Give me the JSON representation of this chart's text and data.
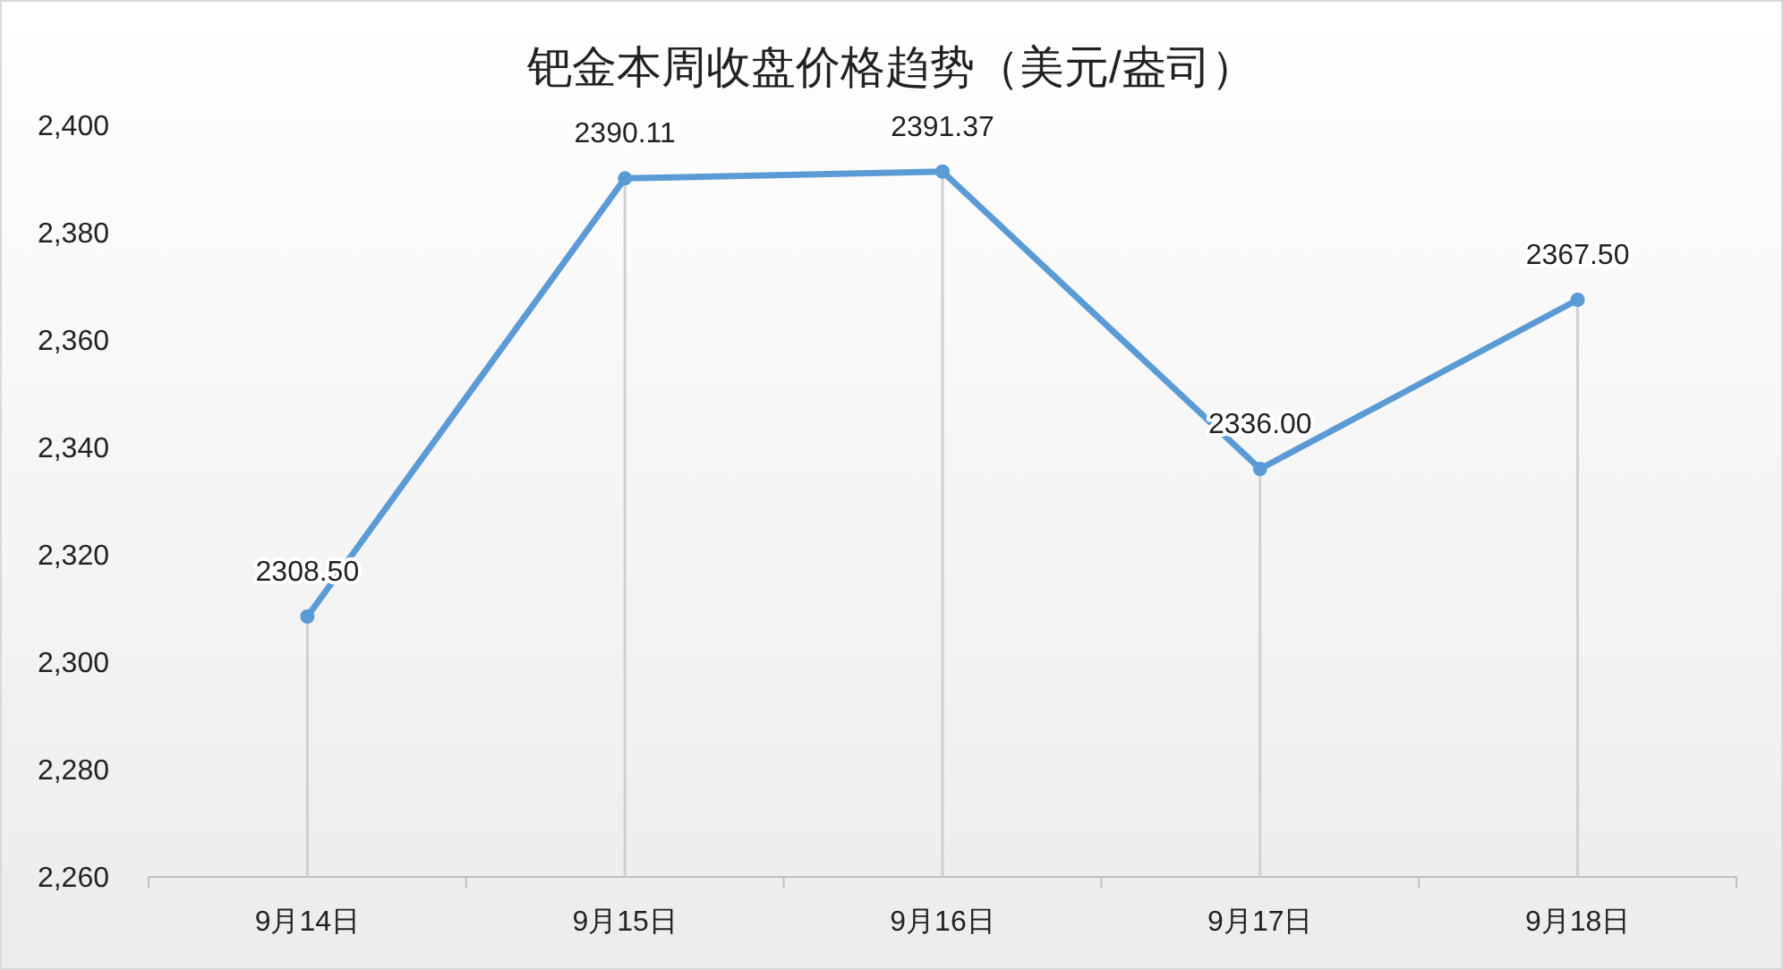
{
  "chart_data": {
    "type": "line",
    "title": "钯金本周收盘价格趋势（美元/盎司）",
    "categories": [
      "9月14日",
      "9月15日",
      "9月16日",
      "9月17日",
      "9月18日"
    ],
    "series": [
      {
        "color": "#5b9bd5",
        "values": [
          2308.5,
          2390.11,
          2391.37,
          2336.0,
          2367.5
        ],
        "value_labels": [
          "2308.50",
          "2390.11",
          "2391.37",
          "2336.00",
          "2367.50"
        ]
      }
    ],
    "ylim": [
      2260,
      2400
    ],
    "yticks": [
      {
        "value": 2260,
        "label": "2,260"
      },
      {
        "value": 2280,
        "label": "2,280"
      },
      {
        "value": 2300,
        "label": "2,300"
      },
      {
        "value": 2320,
        "label": "2,320"
      },
      {
        "value": 2340,
        "label": "2,340"
      },
      {
        "value": 2360,
        "label": "2,360"
      },
      {
        "value": 2380,
        "label": "2,380"
      },
      {
        "value": 2400,
        "label": "2,400"
      }
    ],
    "marker": "circle",
    "line_style": "solid",
    "grid": "x"
  }
}
